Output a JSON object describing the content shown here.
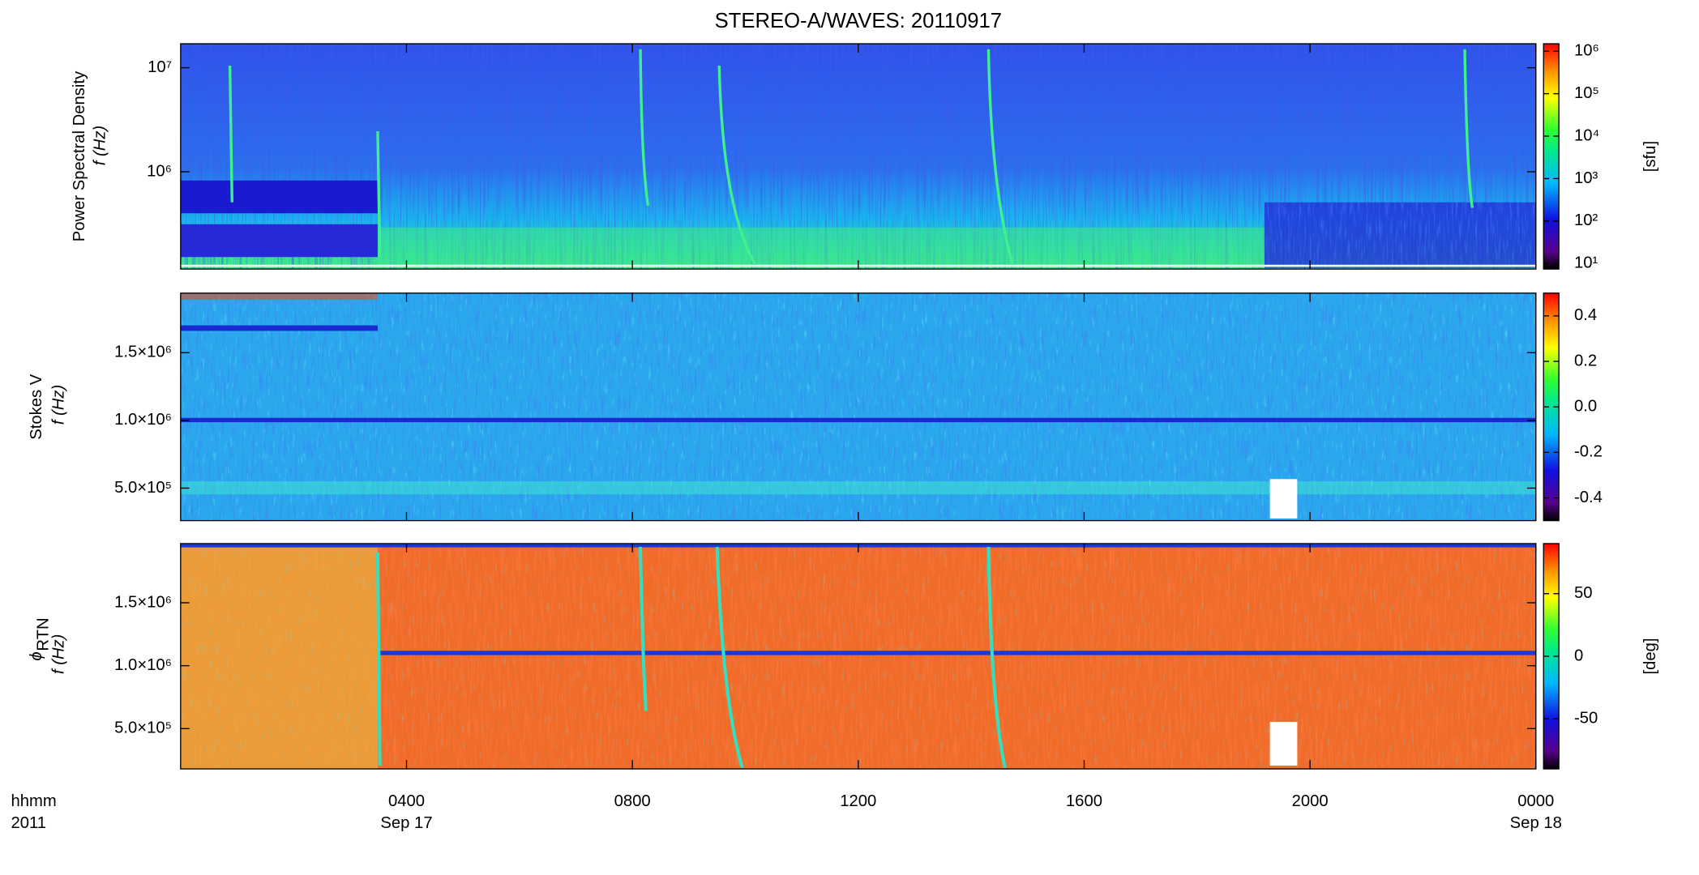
{
  "chart_data": [
    {
      "type": "spectrogram",
      "title": "STEREO-A/WAVES: 20110917",
      "ylabel": "Power Spectral Density",
      "ylabel2": "f (Hz)",
      "ylog": true,
      "ylim": [
        116000,
        17000000
      ],
      "yticks": [
        {
          "value": 1000000,
          "label": "10⁶"
        },
        {
          "value": 10000000,
          "label": "10⁷"
        }
      ],
      "xlim": [
        0,
        24
      ],
      "colorbar": {
        "log": true,
        "label": "[sfu]",
        "lim": [
          7.4,
          1500000
        ],
        "ticks": [
          {
            "value": 10,
            "label": "10¹"
          },
          {
            "value": 100,
            "label": "10²"
          },
          {
            "value": 1000,
            "label": "10³"
          },
          {
            "value": 10000,
            "label": "10⁴"
          },
          {
            "value": 100000,
            "label": "10⁵"
          },
          {
            "value": 1000000,
            "label": "10⁶"
          }
        ]
      }
    },
    {
      "type": "spectrogram",
      "ylabel": "Stokes V",
      "ylabel2": "f (Hz)",
      "ylog": false,
      "ylim": [
        260000,
        1940000
      ],
      "yticks": [
        {
          "value": 500000,
          "label": "5.0×10⁵"
        },
        {
          "value": 1000000,
          "label": "1.0×10⁶"
        },
        {
          "value": 1500000,
          "label": "1.5×10⁶"
        }
      ],
      "xlim": [
        0,
        24
      ],
      "colorbar": {
        "log": false,
        "lim": [
          -0.5,
          0.5
        ],
        "ticks": [
          {
            "value": -0.4,
            "label": "-0.4"
          },
          {
            "value": -0.2,
            "label": "-0.2"
          },
          {
            "value": 0,
            "label": "0.0"
          },
          {
            "value": 0.2,
            "label": "0.2"
          },
          {
            "value": 0.4,
            "label": "0.4"
          }
        ]
      }
    },
    {
      "type": "spectrogram",
      "ylabel": "ϕ",
      "ylabel_sub": "RTN",
      "ylabel2": "f (Hz)",
      "ylog": false,
      "ylim": [
        180000,
        1970000
      ],
      "yticks": [
        {
          "value": 500000,
          "label": "5.0×10⁵"
        },
        {
          "value": 1000000,
          "label": "1.0×10⁶"
        },
        {
          "value": 1500000,
          "label": "1.5×10⁶"
        }
      ],
      "xlim": [
        0,
        24
      ],
      "xlabel": "hhmm",
      "xlabel2": "2011",
      "xticks": [
        {
          "value": 4,
          "label": "0400"
        },
        {
          "value": 8,
          "label": "0800"
        },
        {
          "value": 12,
          "label": "1200"
        },
        {
          "value": 16,
          "label": "1600"
        },
        {
          "value": 20,
          "label": "2000"
        },
        {
          "value": 24,
          "label": "0000"
        }
      ],
      "xtick_dates": [
        {
          "value": 4,
          "label": "Sep 17"
        },
        {
          "value": 24,
          "label": "Sep 18"
        }
      ],
      "colorbar": {
        "log": false,
        "label": "[deg]",
        "lim": [
          -90,
          90
        ],
        "ticks": [
          {
            "value": -50,
            "label": "-50"
          },
          0,
          50
        ]
      }
    }
  ]
}
